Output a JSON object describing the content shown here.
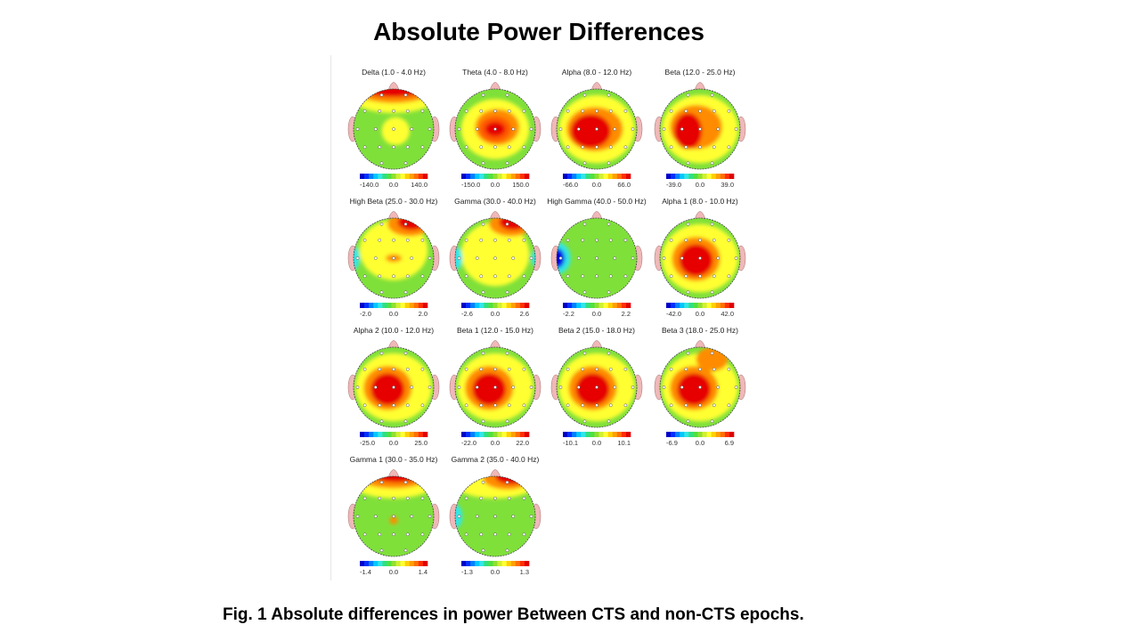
{
  "title": "Absolute Power Differences",
  "caption": "Fig. 1 Absolute differences in power Between CTS and non-CTS epochs.",
  "colors": {
    "red": "#e60000",
    "orange": "#ff8c00",
    "yellow": "#ffff33",
    "green": "#7fe03a",
    "cyan": "#33e6e6",
    "blue": "#0000e0"
  },
  "maps": [
    {
      "title": "Delta (1.0 - 4.0 Hz)",
      "min": "-140.0",
      "mid": "0.0",
      "max": "140.0"
    },
    {
      "title": "Theta (4.0 - 8.0 Hz)",
      "min": "-150.0",
      "mid": "0.0",
      "max": "150.0"
    },
    {
      "title": "Alpha (8.0 - 12.0 Hz)",
      "min": "-66.0",
      "mid": "0.0",
      "max": "66.0"
    },
    {
      "title": "Beta (12.0 - 25.0 Hz)",
      "min": "-39.0",
      "mid": "0.0",
      "max": "39.0"
    },
    {
      "title": "High Beta (25.0 - 30.0 Hz)",
      "min": "-2.0",
      "mid": "0.0",
      "max": "2.0"
    },
    {
      "title": "Gamma (30.0 - 40.0 Hz)",
      "min": "-2.6",
      "mid": "0.0",
      "max": "2.6"
    },
    {
      "title": "High Gamma (40.0 - 50.0 Hz)",
      "min": "-2.2",
      "mid": "0.0",
      "max": "2.2"
    },
    {
      "title": "Alpha 1 (8.0 - 10.0 Hz)",
      "min": "-42.0",
      "mid": "0.0",
      "max": "42.0"
    },
    {
      "title": "Alpha 2 (10.0 - 12.0 Hz)",
      "min": "-25.0",
      "mid": "0.0",
      "max": "25.0"
    },
    {
      "title": "Beta 1 (12.0 - 15.0 Hz)",
      "min": "-22.0",
      "mid": "0.0",
      "max": "22.0"
    },
    {
      "title": "Beta 2 (15.0 - 18.0 Hz)",
      "min": "-10.1",
      "mid": "0.0",
      "max": "10.1"
    },
    {
      "title": "Beta 3 (18.0 - 25.0 Hz)",
      "min": "-6.9",
      "mid": "0.0",
      "max": "6.9"
    },
    {
      "title": "Gamma 1 (30.0 - 35.0 Hz)",
      "min": "-1.4",
      "mid": "0.0",
      "max": "1.4"
    },
    {
      "title": "Gamma 2 (35.0 - 40.0 Hz)",
      "min": "-1.3",
      "mid": "0.0",
      "max": "1.3"
    }
  ]
}
